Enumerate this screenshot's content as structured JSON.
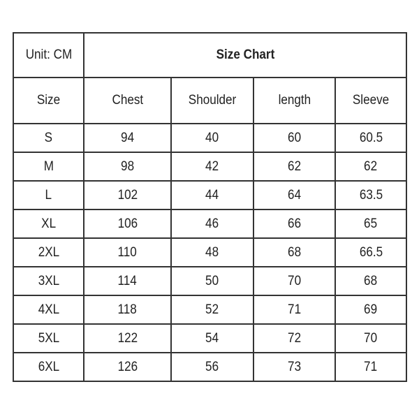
{
  "unit_label": "Unit: CM",
  "title": "Size Chart",
  "columns": [
    "Size",
    "Chest",
    "Shoulder",
    "length",
    "Sleeve"
  ],
  "rows": [
    [
      "S",
      "94",
      "40",
      "60",
      "60.5"
    ],
    [
      "M",
      "98",
      "42",
      "62",
      "62"
    ],
    [
      "L",
      "102",
      "44",
      "64",
      "63.5"
    ],
    [
      "XL",
      "106",
      "46",
      "66",
      "65"
    ],
    [
      "2XL",
      "110",
      "48",
      "68",
      "66.5"
    ],
    [
      "3XL",
      "114",
      "50",
      "70",
      "68"
    ],
    [
      "4XL",
      "118",
      "52",
      "71",
      "69"
    ],
    [
      "5XL",
      "122",
      "54",
      "72",
      "70"
    ],
    [
      "6XL",
      "126",
      "56",
      "73",
      "71"
    ]
  ]
}
